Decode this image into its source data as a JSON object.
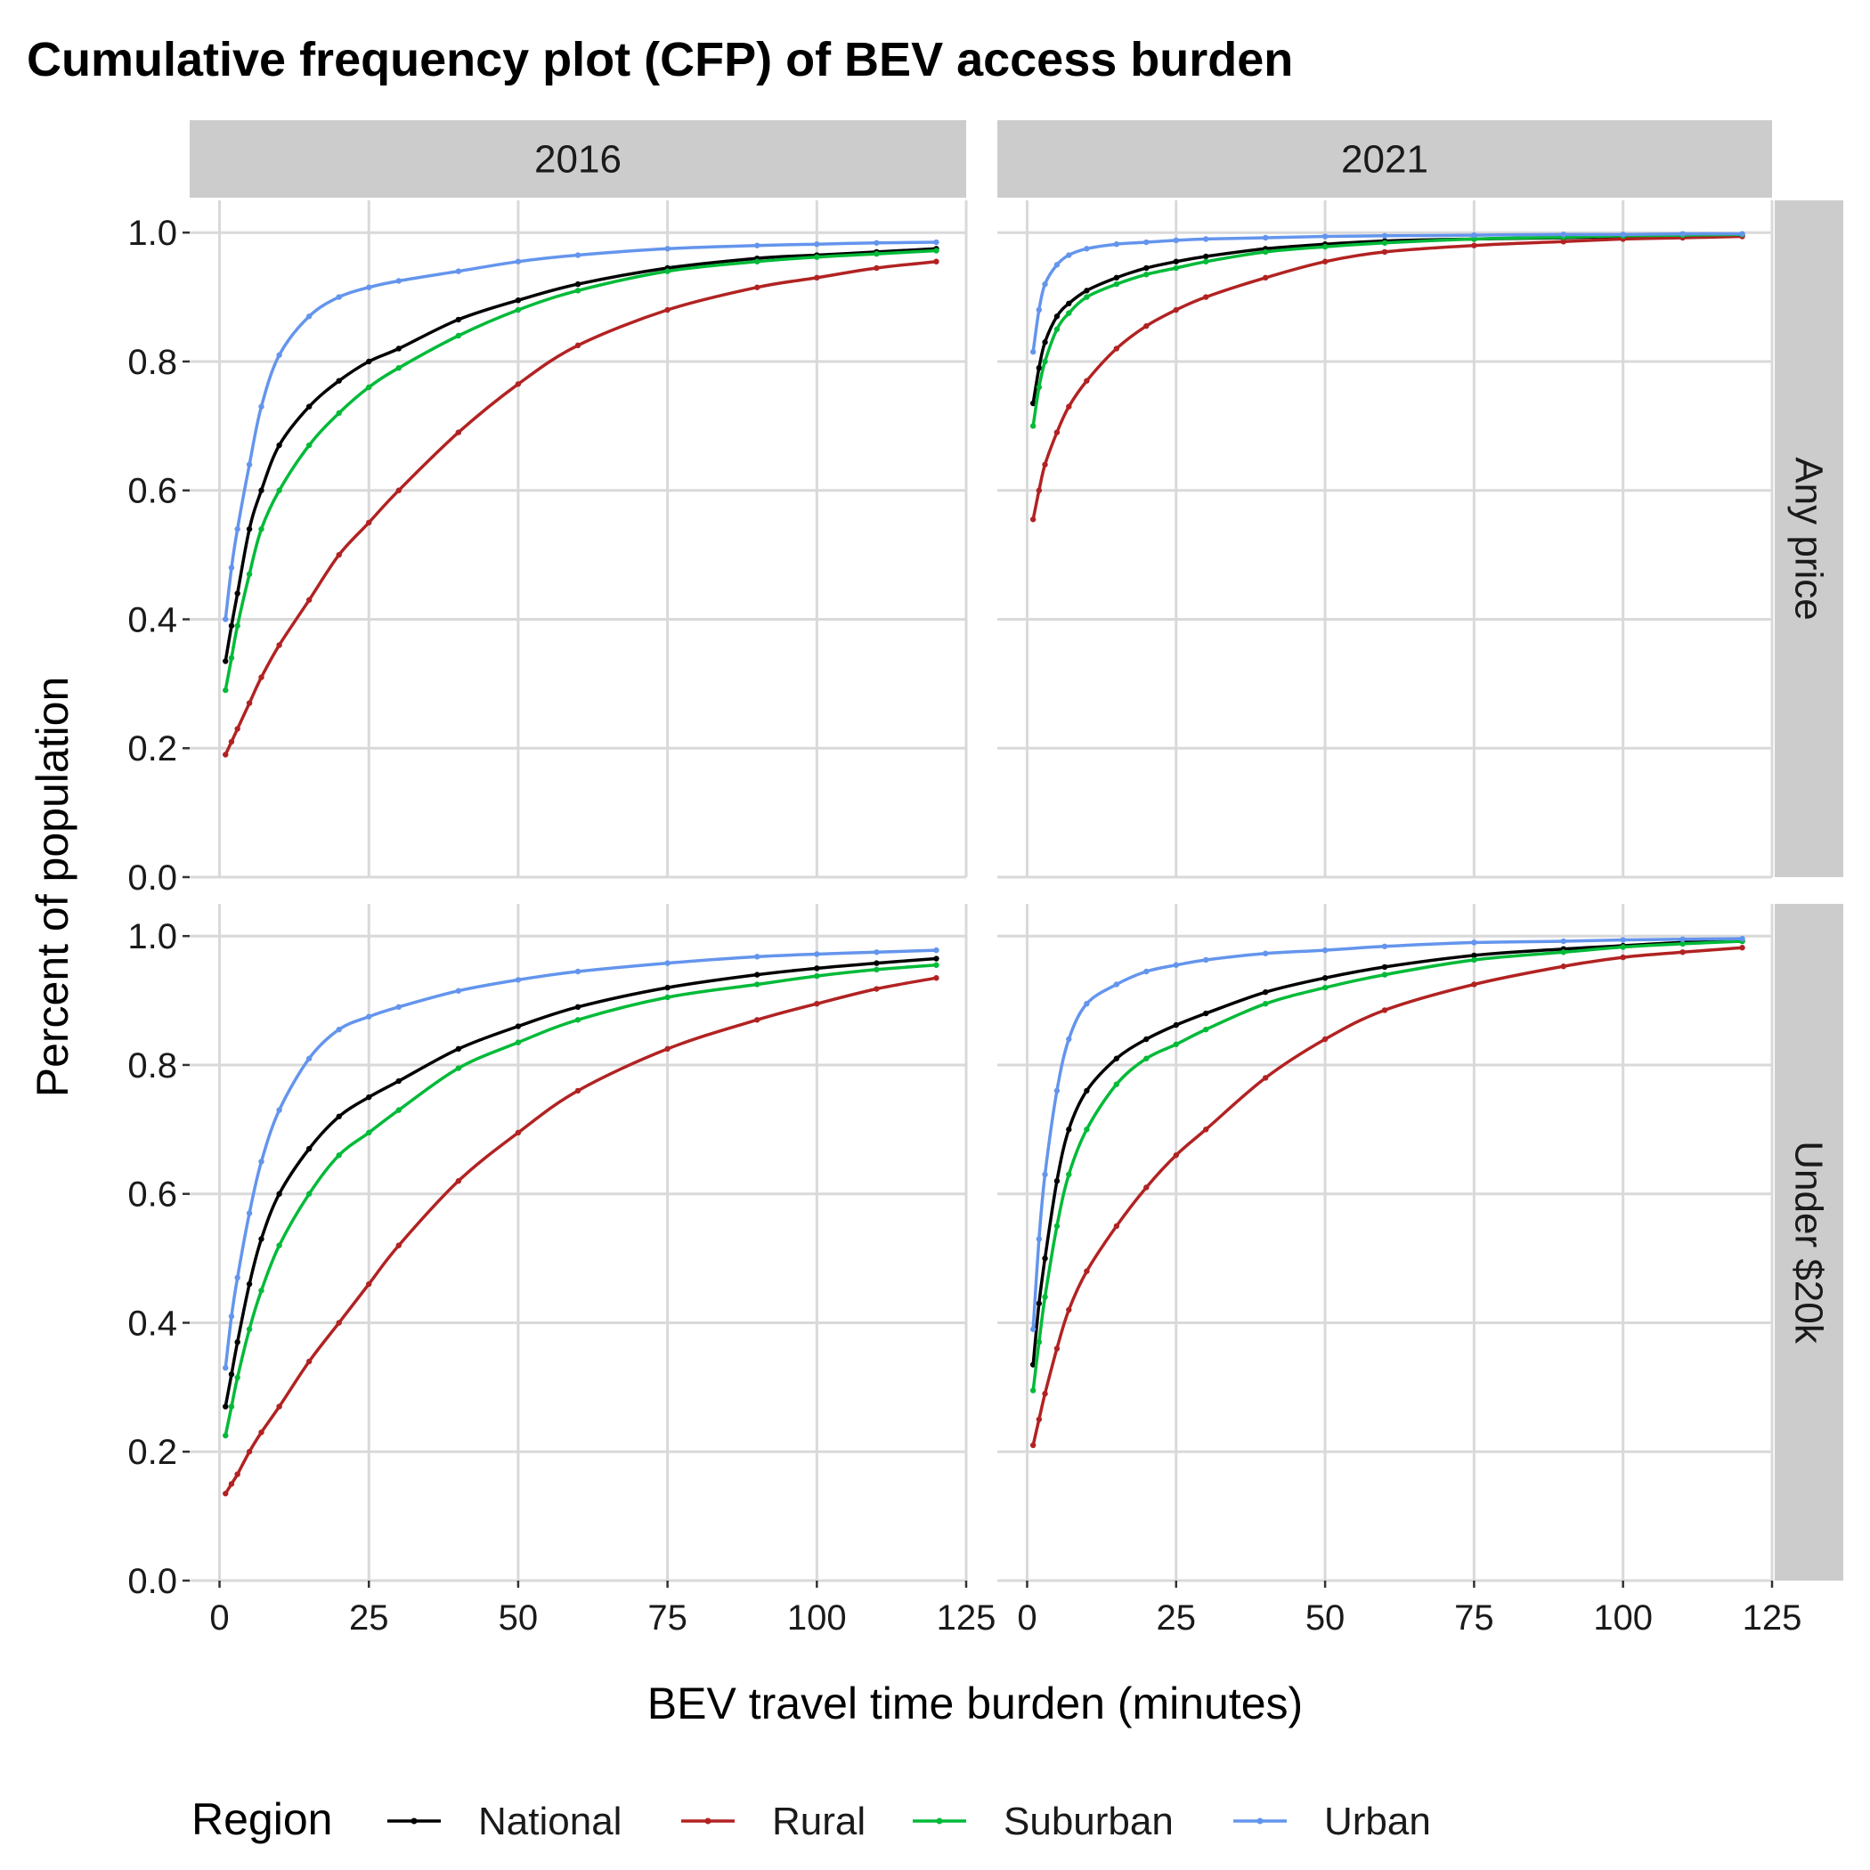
{
  "chart_data": {
    "type": "line",
    "title": "Cumulative frequency plot (CFP) of BEV access burden",
    "xlabel": "BEV travel time burden (minutes)",
    "ylabel": "Percent of population",
    "xlim": [
      -5,
      125
    ],
    "ylim": [
      0,
      1.05
    ],
    "x_ticks": [
      0,
      25,
      50,
      75,
      100,
      125
    ],
    "y_ticks": [
      0.0,
      0.2,
      0.4,
      0.6,
      0.8,
      1.0
    ],
    "x_tick_labels": [
      "0",
      "25",
      "50",
      "75",
      "100",
      "125"
    ],
    "y_tick_labels": [
      "0.0",
      "0.2",
      "0.4",
      "0.6",
      "0.8",
      "1.0"
    ],
    "grid": true,
    "legend": {
      "title": "Region",
      "position": "bottom",
      "entries": [
        {
          "name": "National",
          "color": "#000000"
        },
        {
          "name": "Rural",
          "color": "#B22222"
        },
        {
          "name": "Suburban",
          "color": "#00BA38"
        },
        {
          "name": "Urban",
          "color": "#6495ED"
        }
      ]
    },
    "facets": {
      "columns": [
        "2016",
        "2021"
      ],
      "rows": [
        "Any price",
        "Under $20k"
      ]
    },
    "x": [
      1,
      2,
      3,
      5,
      7,
      10,
      15,
      20,
      25,
      30,
      40,
      50,
      60,
      75,
      90,
      100,
      110,
      120
    ],
    "panels": [
      {
        "column": "2016",
        "row": "Any price",
        "series": [
          {
            "name": "National",
            "values": [
              0.335,
              0.39,
              0.44,
              0.54,
              0.6,
              0.67,
              0.73,
              0.77,
              0.8,
              0.82,
              0.865,
              0.895,
              0.92,
              0.945,
              0.96,
              0.965,
              0.97,
              0.975
            ]
          },
          {
            "name": "Rural",
            "values": [
              0.19,
              0.21,
              0.23,
              0.27,
              0.31,
              0.36,
              0.43,
              0.5,
              0.55,
              0.6,
              0.69,
              0.765,
              0.825,
              0.88,
              0.915,
              0.93,
              0.945,
              0.955
            ]
          },
          {
            "name": "Suburban",
            "values": [
              0.29,
              0.34,
              0.39,
              0.47,
              0.54,
              0.6,
              0.67,
              0.72,
              0.76,
              0.79,
              0.84,
              0.88,
              0.91,
              0.94,
              0.955,
              0.962,
              0.967,
              0.972
            ]
          },
          {
            "name": "Urban",
            "values": [
              0.4,
              0.48,
              0.54,
              0.64,
              0.73,
              0.81,
              0.87,
              0.9,
              0.915,
              0.925,
              0.94,
              0.955,
              0.965,
              0.975,
              0.98,
              0.982,
              0.984,
              0.985
            ]
          }
        ]
      },
      {
        "column": "2021",
        "row": "Any price",
        "series": [
          {
            "name": "National",
            "values": [
              0.735,
              0.79,
              0.83,
              0.87,
              0.89,
              0.91,
              0.93,
              0.945,
              0.955,
              0.963,
              0.975,
              0.982,
              0.987,
              0.99,
              0.992,
              0.994,
              0.995,
              0.996
            ]
          },
          {
            "name": "Rural",
            "values": [
              0.555,
              0.6,
              0.64,
              0.69,
              0.73,
              0.77,
              0.82,
              0.855,
              0.88,
              0.9,
              0.93,
              0.955,
              0.97,
              0.98,
              0.986,
              0.99,
              0.992,
              0.994
            ]
          },
          {
            "name": "Suburban",
            "values": [
              0.7,
              0.76,
              0.8,
              0.85,
              0.875,
              0.9,
              0.92,
              0.935,
              0.945,
              0.955,
              0.97,
              0.978,
              0.984,
              0.99,
              0.993,
              0.995,
              0.996,
              0.997
            ]
          },
          {
            "name": "Urban",
            "values": [
              0.815,
              0.88,
              0.92,
              0.95,
              0.965,
              0.975,
              0.982,
              0.985,
              0.988,
              0.99,
              0.992,
              0.994,
              0.995,
              0.996,
              0.997,
              0.997,
              0.998,
              0.998
            ]
          }
        ]
      },
      {
        "column": "2016",
        "row": "Under $20k",
        "series": [
          {
            "name": "National",
            "values": [
              0.27,
              0.32,
              0.37,
              0.46,
              0.53,
              0.6,
              0.67,
              0.72,
              0.75,
              0.775,
              0.825,
              0.86,
              0.89,
              0.92,
              0.94,
              0.95,
              0.958,
              0.965
            ]
          },
          {
            "name": "Rural",
            "values": [
              0.135,
              0.15,
              0.165,
              0.2,
              0.23,
              0.27,
              0.34,
              0.4,
              0.46,
              0.52,
              0.62,
              0.695,
              0.76,
              0.825,
              0.87,
              0.895,
              0.918,
              0.935
            ]
          },
          {
            "name": "Suburban",
            "values": [
              0.225,
              0.27,
              0.315,
              0.39,
              0.45,
              0.52,
              0.6,
              0.66,
              0.695,
              0.73,
              0.795,
              0.835,
              0.87,
              0.905,
              0.925,
              0.938,
              0.948,
              0.955
            ]
          },
          {
            "name": "Urban",
            "values": [
              0.33,
              0.41,
              0.47,
              0.57,
              0.65,
              0.73,
              0.81,
              0.855,
              0.875,
              0.89,
              0.915,
              0.932,
              0.945,
              0.958,
              0.968,
              0.972,
              0.975,
              0.978
            ]
          }
        ]
      },
      {
        "column": "2021",
        "row": "Under $20k",
        "series": [
          {
            "name": "National",
            "values": [
              0.335,
              0.43,
              0.5,
              0.62,
              0.7,
              0.76,
              0.81,
              0.84,
              0.862,
              0.88,
              0.913,
              0.935,
              0.952,
              0.97,
              0.98,
              0.985,
              0.99,
              0.992
            ]
          },
          {
            "name": "Rural",
            "values": [
              0.21,
              0.25,
              0.29,
              0.36,
              0.42,
              0.48,
              0.55,
              0.61,
              0.66,
              0.7,
              0.78,
              0.84,
              0.885,
              0.925,
              0.953,
              0.967,
              0.975,
              0.982
            ]
          },
          {
            "name": "Suburban",
            "values": [
              0.295,
              0.37,
              0.44,
              0.55,
              0.63,
              0.7,
              0.77,
              0.81,
              0.832,
              0.855,
              0.895,
              0.92,
              0.94,
              0.963,
              0.975,
              0.983,
              0.988,
              0.992
            ]
          },
          {
            "name": "Urban",
            "values": [
              0.39,
              0.53,
              0.63,
              0.76,
              0.84,
              0.895,
              0.925,
              0.945,
              0.955,
              0.963,
              0.973,
              0.978,
              0.984,
              0.99,
              0.992,
              0.994,
              0.995,
              0.996
            ]
          }
        ]
      }
    ]
  }
}
